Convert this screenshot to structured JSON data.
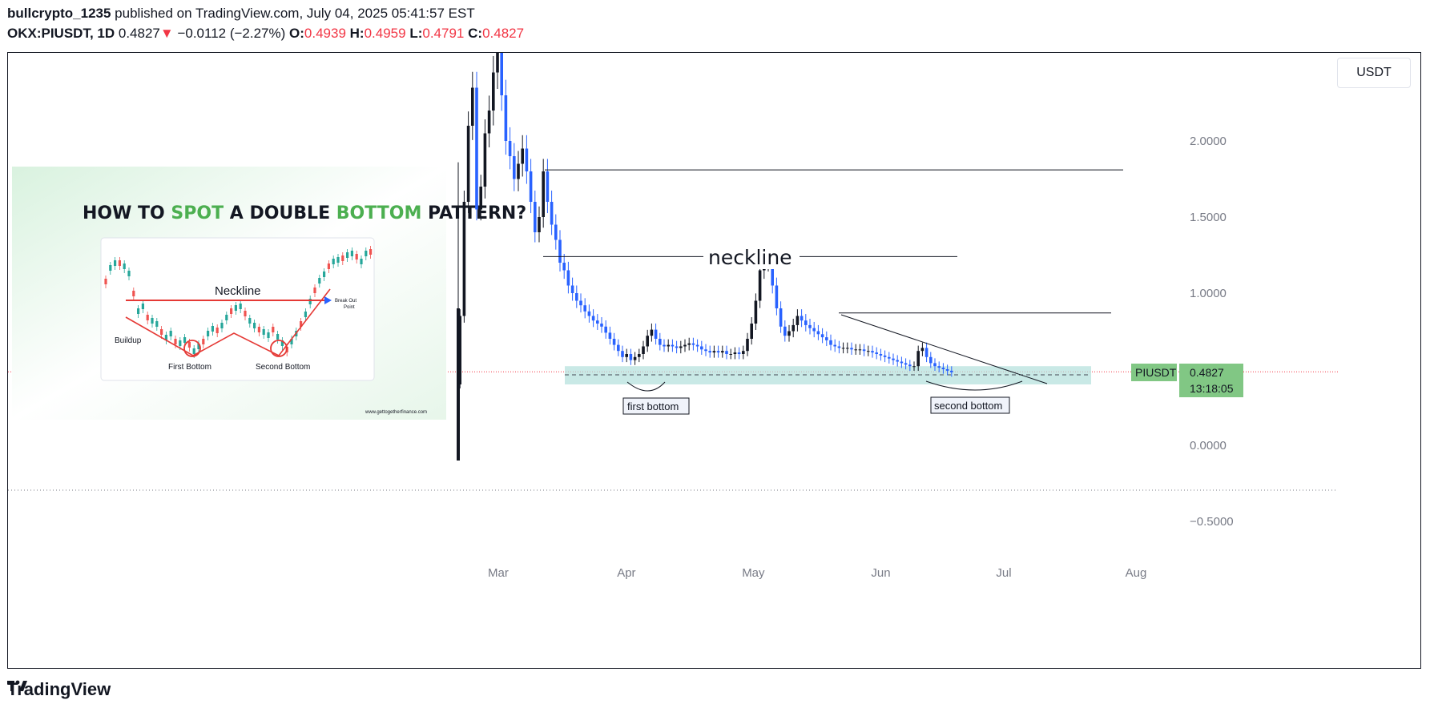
{
  "header": {
    "author": "bullcrypto_1235",
    "published": " published on TradingView.com, July 04, 2025 05:41:57 EST",
    "symbol": "OKX:PIUSDT, 1D",
    "last": "0.4827",
    "arrow": "▼",
    "change": "−0.0112 (−2.27%)",
    "o_label": "O:",
    "o": "0.4939",
    "h_label": "H:",
    "h": "0.4959",
    "l_label": "L:",
    "l": "0.4791",
    "c_label": "C:",
    "c": "0.4827"
  },
  "currency_button": "USDT",
  "price_tag": {
    "symbol": "PIUSDT",
    "price": "0.4827",
    "countdown": "13:18:05"
  },
  "annotations": {
    "neckline": "neckline",
    "first_bottom": "first bottom",
    "second_bottom": "second bottom"
  },
  "inset": {
    "title_parts": [
      "HOW TO ",
      "SPOT",
      " A DOUBLE ",
      "BOTTOM",
      " PATTERN?"
    ],
    "neckline": "Neckline",
    "breakout": [
      "Break Out",
      "Point"
    ],
    "buildup": "Buildup",
    "first_bottom": "First Bottom",
    "second_bottom": "Second Bottom",
    "site": "www.gettogetherfinance.com"
  },
  "footer": {
    "brand": "TradingView"
  },
  "colors": {
    "up": "#131722",
    "down": "#2962ff",
    "zone": "#b2dfdb",
    "price_tag": "#81c784",
    "accent_red": "#f23645",
    "inset_green": "#4caf50"
  },
  "chart_data": {
    "type": "candlestick",
    "symbol": "PIUSDT",
    "y_ticks": [
      "2.0000",
      "1.5000",
      "1.0000",
      "0.0000",
      "−0.5000"
    ],
    "y_tick_values": [
      2.0,
      1.5,
      1.0,
      0.0,
      -0.5
    ],
    "x_ticks": [
      "Mar",
      "Apr",
      "May",
      "Jun",
      "Jul",
      "Aug"
    ],
    "x_tick_dates": [
      "2025-03-01",
      "2025-04-01",
      "2025-05-01",
      "2025-06-01",
      "2025-07-01",
      "2025-08-01"
    ],
    "ylim": [
      -0.75,
      2.5
    ],
    "last_price": 0.4827,
    "horizontal_lines": [
      1.81,
      1.24,
      0.87
    ],
    "support_zone": [
      0.4,
      0.52
    ],
    "closes": [
      [
        "2025-02-20",
        0.85
      ],
      [
        "2025-02-21",
        1.6
      ],
      [
        "2025-02-22",
        2.1
      ],
      [
        "2025-02-23",
        2.35
      ],
      [
        "2025-02-24",
        1.55
      ],
      [
        "2025-02-25",
        1.7
      ],
      [
        "2025-02-26",
        2.05
      ],
      [
        "2025-02-27",
        2.2
      ],
      [
        "2025-02-28",
        2.45
      ],
      [
        "2025-03-01",
        2.65
      ],
      [
        "2025-03-02",
        2.3
      ],
      [
        "2025-03-03",
        2.0
      ],
      [
        "2025-03-04",
        1.9
      ],
      [
        "2025-03-05",
        1.75
      ],
      [
        "2025-03-06",
        1.85
      ],
      [
        "2025-03-07",
        1.95
      ],
      [
        "2025-03-08",
        1.8
      ],
      [
        "2025-03-09",
        1.6
      ],
      [
        "2025-03-10",
        1.4
      ],
      [
        "2025-03-11",
        1.5
      ],
      [
        "2025-03-12",
        1.8
      ],
      [
        "2025-03-13",
        1.6
      ],
      [
        "2025-03-14",
        1.45
      ],
      [
        "2025-03-15",
        1.35
      ],
      [
        "2025-03-16",
        1.2
      ],
      [
        "2025-03-17",
        1.15
      ],
      [
        "2025-03-18",
        1.05
      ],
      [
        "2025-03-19",
        1.0
      ],
      [
        "2025-03-20",
        0.95
      ],
      [
        "2025-03-21",
        0.92
      ],
      [
        "2025-03-22",
        0.88
      ],
      [
        "2025-03-23",
        0.85
      ],
      [
        "2025-03-24",
        0.82
      ],
      [
        "2025-03-25",
        0.8
      ],
      [
        "2025-03-26",
        0.78
      ],
      [
        "2025-03-27",
        0.74
      ],
      [
        "2025-03-28",
        0.7
      ],
      [
        "2025-03-29",
        0.66
      ],
      [
        "2025-03-30",
        0.62
      ],
      [
        "2025-03-31",
        0.58
      ],
      [
        "2025-04-01",
        0.6
      ],
      [
        "2025-04-02",
        0.56
      ],
      [
        "2025-04-03",
        0.58
      ],
      [
        "2025-04-04",
        0.6
      ],
      [
        "2025-04-05",
        0.65
      ],
      [
        "2025-04-06",
        0.72
      ],
      [
        "2025-04-07",
        0.76
      ],
      [
        "2025-04-08",
        0.7
      ],
      [
        "2025-04-09",
        0.66
      ],
      [
        "2025-04-10",
        0.65
      ],
      [
        "2025-04-11",
        0.66
      ],
      [
        "2025-04-12",
        0.65
      ],
      [
        "2025-04-13",
        0.64
      ],
      [
        "2025-04-14",
        0.65
      ],
      [
        "2025-04-15",
        0.66
      ],
      [
        "2025-04-16",
        0.67
      ],
      [
        "2025-04-17",
        0.66
      ],
      [
        "2025-04-18",
        0.65
      ],
      [
        "2025-04-19",
        0.63
      ],
      [
        "2025-04-20",
        0.62
      ],
      [
        "2025-04-21",
        0.61
      ],
      [
        "2025-04-22",
        0.62
      ],
      [
        "2025-04-23",
        0.61
      ],
      [
        "2025-04-24",
        0.62
      ],
      [
        "2025-04-25",
        0.6
      ],
      [
        "2025-04-26",
        0.6
      ],
      [
        "2025-04-27",
        0.61
      ],
      [
        "2025-04-28",
        0.6
      ],
      [
        "2025-04-29",
        0.62
      ],
      [
        "2025-04-30",
        0.7
      ],
      [
        "2025-05-01",
        0.8
      ],
      [
        "2025-05-02",
        0.95
      ],
      [
        "2025-05-03",
        1.15
      ],
      [
        "2025-05-04",
        1.2
      ],
      [
        "2025-05-05",
        1.25
      ],
      [
        "2025-05-06",
        1.05
      ],
      [
        "2025-05-07",
        0.9
      ],
      [
        "2025-05-08",
        0.78
      ],
      [
        "2025-05-09",
        0.72
      ],
      [
        "2025-05-10",
        0.75
      ],
      [
        "2025-05-11",
        0.79
      ],
      [
        "2025-05-12",
        0.85
      ],
      [
        "2025-05-13",
        0.82
      ],
      [
        "2025-05-14",
        0.79
      ],
      [
        "2025-05-15",
        0.77
      ],
      [
        "2025-05-16",
        0.75
      ],
      [
        "2025-05-17",
        0.73
      ],
      [
        "2025-05-18",
        0.71
      ],
      [
        "2025-05-19",
        0.69
      ],
      [
        "2025-05-20",
        0.66
      ],
      [
        "2025-05-21",
        0.65
      ],
      [
        "2025-05-22",
        0.64
      ],
      [
        "2025-05-23",
        0.64
      ],
      [
        "2025-05-24",
        0.64
      ],
      [
        "2025-05-25",
        0.63
      ],
      [
        "2025-05-26",
        0.63
      ],
      [
        "2025-05-27",
        0.63
      ],
      [
        "2025-05-28",
        0.62
      ],
      [
        "2025-05-29",
        0.62
      ],
      [
        "2025-05-30",
        0.61
      ],
      [
        "2025-05-31",
        0.6
      ],
      [
        "2025-06-01",
        0.59
      ],
      [
        "2025-06-02",
        0.58
      ],
      [
        "2025-06-03",
        0.57
      ],
      [
        "2025-06-04",
        0.56
      ],
      [
        "2025-06-05",
        0.55
      ],
      [
        "2025-06-06",
        0.54
      ],
      [
        "2025-06-07",
        0.53
      ],
      [
        "2025-06-08",
        0.52
      ],
      [
        "2025-06-09",
        0.52
      ],
      [
        "2025-06-10",
        0.62
      ],
      [
        "2025-06-11",
        0.64
      ],
      [
        "2025-06-12",
        0.58
      ],
      [
        "2025-06-13",
        0.54
      ],
      [
        "2025-06-14",
        0.52
      ],
      [
        "2025-06-15",
        0.51
      ],
      [
        "2025-06-16",
        0.5
      ],
      [
        "2025-06-17",
        0.49
      ],
      [
        "2025-06-18",
        0.48
      ]
    ]
  }
}
